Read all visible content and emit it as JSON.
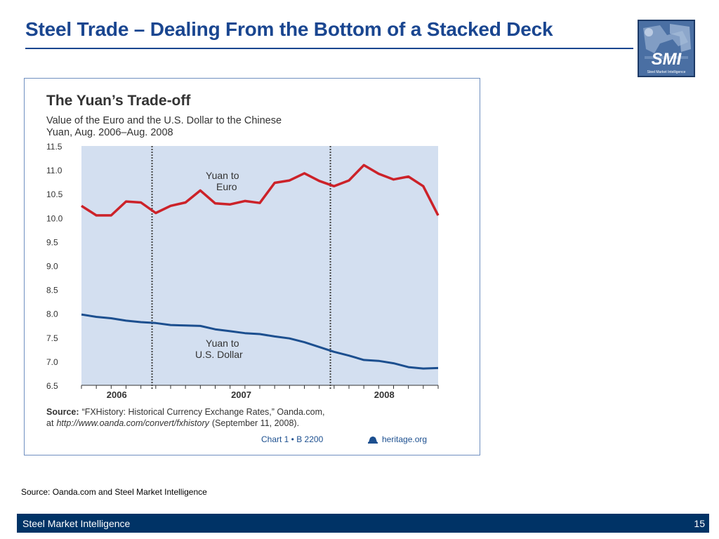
{
  "slide": {
    "title": "Steel Trade – Dealing From the Bottom of a Stacked Deck",
    "source_note": "Source: Oanda.com and Steel Market Intelligence",
    "footer_name": "Steel Market Intelligence",
    "page_number": "15"
  },
  "logo": {
    "text": "SMI",
    "subtext": "Steel Market Intelligence"
  },
  "chart_data": {
    "type": "line",
    "title": "The Yuan’s Trade-off",
    "subtitle_line1": "Value of the Euro and the U.S. Dollar to the Chinese",
    "subtitle_line2": "Yuan, Aug. 2006–Aug. 2008",
    "ylim": [
      6.5,
      11.5
    ],
    "y_ticks": [
      "11.5",
      "11.0",
      "10.5",
      "10.0",
      "9.5",
      "9.0",
      "8.5",
      "8.0",
      "7.5",
      "7.0",
      "6.5"
    ],
    "y_tick_values": [
      11.5,
      11.0,
      10.5,
      10.0,
      9.5,
      9.0,
      8.5,
      8.0,
      7.5,
      7.0,
      6.5
    ],
    "year_labels": [
      "2006",
      "2007",
      "2008"
    ],
    "x_ticks": 25,
    "year_dividers_at_index": [
      4.75,
      16.75
    ],
    "series": [
      {
        "label_line1": "Yuan to",
        "label_line2": "Euro",
        "color": "#cc2229",
        "values": [
          10.25,
          10.05,
          10.05,
          10.34,
          10.32,
          10.1,
          10.25,
          10.32,
          10.57,
          10.3,
          10.28,
          10.35,
          10.31,
          10.73,
          10.78,
          10.93,
          10.77,
          10.66,
          10.78,
          11.1,
          10.92,
          10.8,
          10.86,
          10.66,
          10.05
        ]
      },
      {
        "label_line1": "Yuan to",
        "label_line2": "U.S. Dollar",
        "color": "#1c4f8f",
        "values": [
          7.98,
          7.93,
          7.9,
          7.85,
          7.82,
          7.8,
          7.76,
          7.75,
          7.74,
          7.67,
          7.63,
          7.59,
          7.57,
          7.52,
          7.48,
          7.4,
          7.3,
          7.2,
          7.12,
          7.03,
          7.01,
          6.96,
          6.88,
          6.85,
          6.86
        ]
      }
    ],
    "grid": false,
    "plot_background": "#d3dff0",
    "source_bold": "Source:",
    "source_line1": "“FXHistory: Historical Currency Exchange Rates,” Oanda.com,",
    "source_at": "at",
    "source_url": "http://www.oanda.com/convert/fxhistory",
    "source_date": "(September 11, 2008).",
    "credit_chart": "Chart 1 • B 2200",
    "credit_site": "heritage.org"
  }
}
